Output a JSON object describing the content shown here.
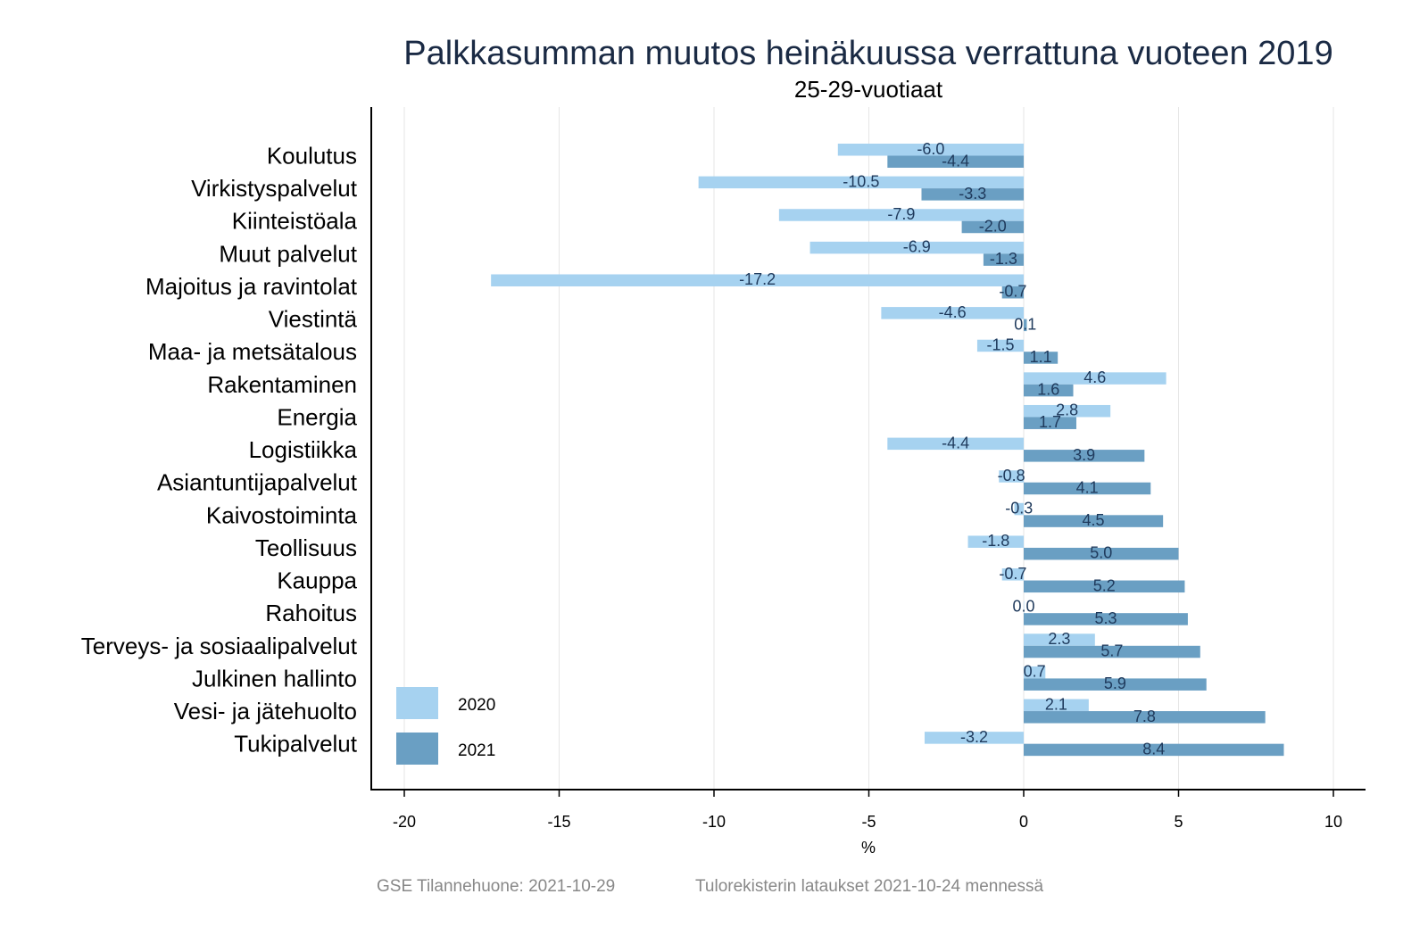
{
  "chart_data": {
    "type": "bar",
    "orientation": "horizontal",
    "title": "Palkkasumman muutos heinäkuussa verrattuna vuoteen 2019",
    "subtitle": "25-29-vuotiaat",
    "xlabel": "%",
    "ylabel": "",
    "xlim": [
      -21,
      11
    ],
    "xticks": [
      -20,
      -15,
      -10,
      -5,
      0,
      5,
      10
    ],
    "xtick_labels": [
      "-20",
      "-15",
      "-10",
      "-5",
      "0",
      "5",
      "10"
    ],
    "grid": true,
    "legend_position": "bottom-left",
    "categories": [
      "Koulutus",
      "Virkistyspalvelut",
      "Kiinteistöala",
      "Muut palvelut",
      "Majoitus ja ravintolat",
      "Viestintä",
      "Maa- ja metsätalous",
      "Rakentaminen",
      "Energia",
      "Logistiikka",
      "Asiantuntijapalvelut",
      "Kaivostoiminta",
      "Teollisuus",
      "Kauppa",
      "Rahoitus",
      "Terveys- ja sosiaalipalvelut",
      "Julkinen hallinto",
      "Vesi- ja jätehuolto",
      "Tukipalvelut"
    ],
    "series": [
      {
        "name": "2020",
        "color": "#a6d2f0",
        "values": [
          -6.0,
          -10.5,
          -7.9,
          -6.9,
          -17.2,
          -4.6,
          -1.5,
          4.6,
          2.8,
          -4.4,
          -0.8,
          -0.3,
          -1.8,
          -0.7,
          0.0,
          2.3,
          0.7,
          2.1,
          -3.2
        ]
      },
      {
        "name": "2021",
        "color": "#6a9fc3",
        "values": [
          -4.4,
          -3.3,
          -2.0,
          -1.3,
          -0.7,
          0.1,
          1.1,
          1.6,
          1.7,
          3.9,
          4.1,
          4.5,
          5.0,
          5.2,
          5.3,
          5.7,
          5.9,
          7.8,
          8.4
        ]
      }
    ]
  },
  "footer": {
    "source": "GSE Tilannehuone: 2021-10-29",
    "note": "Tulorekisterin lataukset 2021-10-24 mennessä"
  }
}
